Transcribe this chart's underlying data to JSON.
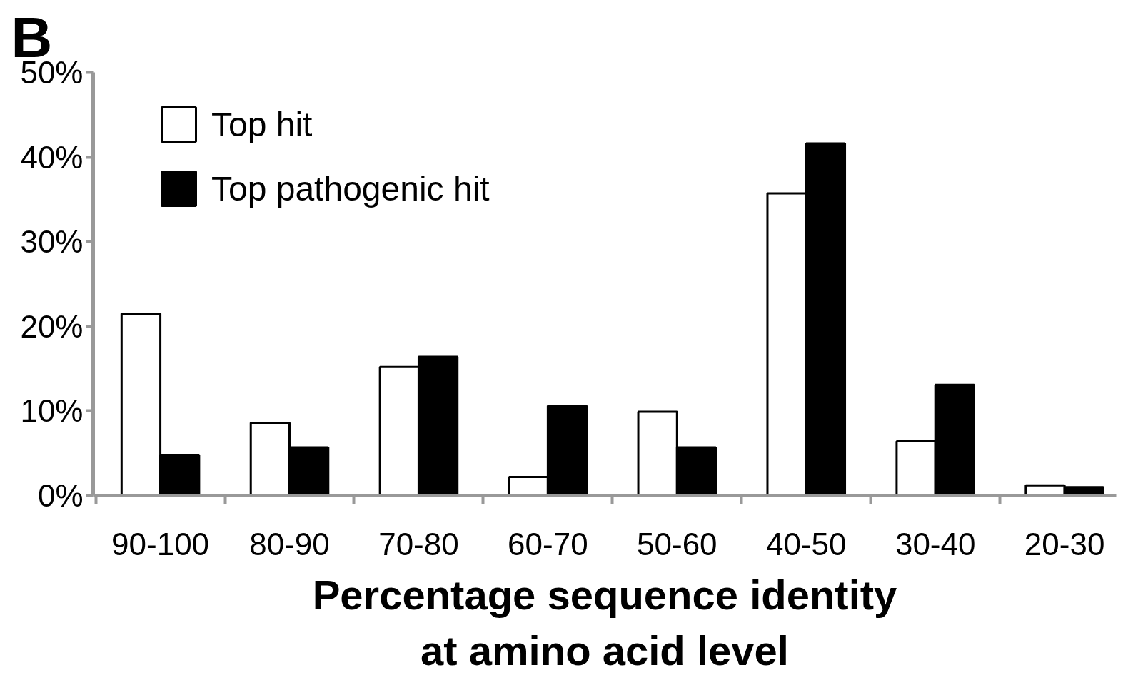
{
  "chart_data": {
    "type": "bar",
    "annotations": [
      "B"
    ],
    "xlabel": "Percentage sequence identity\nat amino acid level",
    "categories": [
      "90-100",
      "80-90",
      "70-80",
      "60-70",
      "50-60",
      "40-50",
      "30-40",
      "20-30"
    ],
    "series": [
      {
        "name": "Top hit",
        "color": "#ffffff",
        "values": [
          21.5,
          8.6,
          15.2,
          2.2,
          9.9,
          35.7,
          6.4,
          1.2
        ]
      },
      {
        "name": "Top pathogenic hit",
        "color": "#000000",
        "values": [
          4.8,
          5.7,
          16.4,
          10.6,
          5.7,
          41.6,
          13.1,
          1.0
        ]
      }
    ],
    "ylim": [
      0,
      50
    ],
    "yticks": [
      {
        "value": 0,
        "label": "0%"
      },
      {
        "value": 10,
        "label": "10%"
      },
      {
        "value": 20,
        "label": "20%"
      },
      {
        "value": 30,
        "label": "30%"
      },
      {
        "value": 40,
        "label": "40%"
      },
      {
        "value": 50,
        "label": "50%"
      }
    ],
    "grid": false,
    "legend": "top left"
  }
}
